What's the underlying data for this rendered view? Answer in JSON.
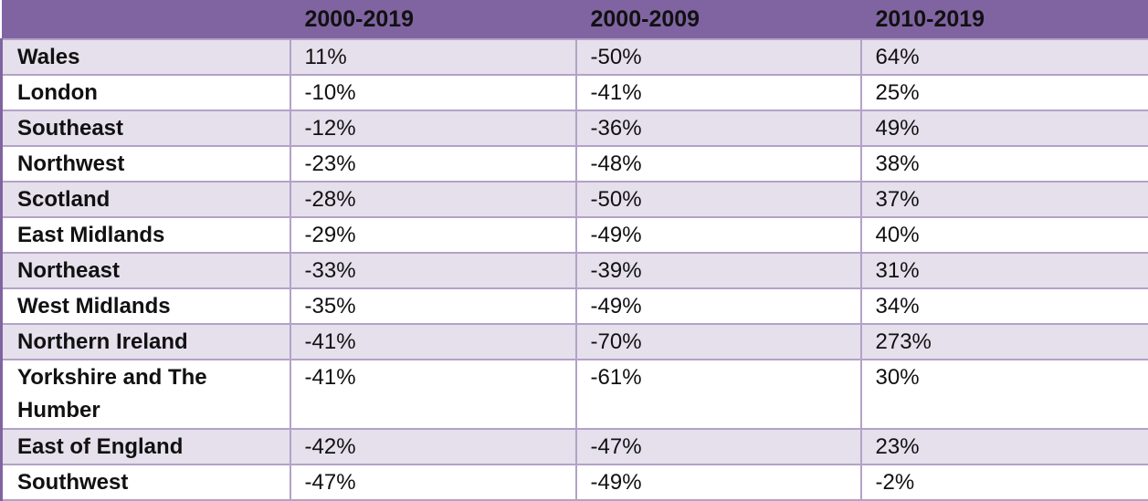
{
  "table": {
    "headers": [
      "",
      "2000-2019",
      "2000-2009",
      "2010-2019"
    ],
    "rows": [
      {
        "region": "Wales",
        "p2000_2019": "11%",
        "p2000_2009": "-50%",
        "p2010_2019": "64%"
      },
      {
        "region": "London",
        "p2000_2019": "-10%",
        "p2000_2009": "-41%",
        "p2010_2019": "25%"
      },
      {
        "region": "Southeast",
        "p2000_2019": "-12%",
        "p2000_2009": "-36%",
        "p2010_2019": "49%"
      },
      {
        "region": "Northwest",
        "p2000_2019": "-23%",
        "p2000_2009": "-48%",
        "p2010_2019": "38%"
      },
      {
        "region": "Scotland",
        "p2000_2019": "-28%",
        "p2000_2009": "-50%",
        "p2010_2019": "37%"
      },
      {
        "region": "East Midlands",
        "p2000_2019": "-29%",
        "p2000_2009": "-49%",
        "p2010_2019": "40%"
      },
      {
        "region": "Northeast",
        "p2000_2019": "-33%",
        "p2000_2009": "-39%",
        "p2010_2019": "31%"
      },
      {
        "region": "West Midlands",
        "p2000_2019": "-35%",
        "p2000_2009": "-49%",
        "p2010_2019": "34%"
      },
      {
        "region": "Northern Ireland",
        "p2000_2019": "-41%",
        "p2000_2009": "-70%",
        "p2010_2019": "273%"
      },
      {
        "region": "Yorkshire and The Humber",
        "p2000_2019": "-41%",
        "p2000_2009": "-61%",
        "p2010_2019": "30%"
      },
      {
        "region": "East of England",
        "p2000_2019": "-42%",
        "p2000_2009": "-47%",
        "p2010_2019": "23%"
      },
      {
        "region": "Southwest",
        "p2000_2019": "-47%",
        "p2000_2009": "-49%",
        "p2010_2019": "-2%"
      }
    ]
  },
  "colors": {
    "header_bg": "#8064a2",
    "band_bg": "#e5e0ec",
    "grid_line": "#b3a2c7"
  }
}
